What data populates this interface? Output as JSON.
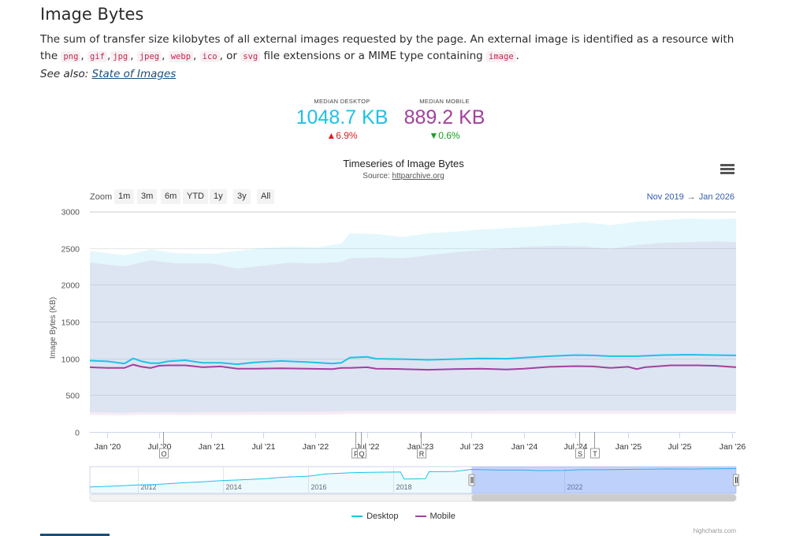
{
  "page": {
    "title": "Image Bytes",
    "desc_parts": [
      "The sum of transfer size kilobytes of all external images requested by the page. An external image is identified as a resource with the ",
      ", ",
      ",",
      ", ",
      ", ",
      ", ",
      ", or ",
      " file extensions or a MIME type containing ",
      "."
    ],
    "desc_codes": [
      "png",
      "gif",
      "jpg",
      "jpeg",
      "webp",
      "ico",
      "svg",
      "image"
    ],
    "see_also_label": "See also:",
    "see_also_link": "State of Images"
  },
  "metrics": {
    "desktop": {
      "label": "MEDIAN DESKTOP",
      "value": "1048.7 KB",
      "change": "▲6.9%",
      "color": "#1ec1e8",
      "change_color": "#e31b23"
    },
    "mobile": {
      "label": "MEDIAN MOBILE",
      "value": "889.2 KB",
      "change": "▼0.6%",
      "color": "#a3409e",
      "change_color": "#16a01c"
    }
  },
  "toolbar": {
    "zoom_label": "Zoom",
    "zoom_buttons": [
      "1m",
      "3m",
      "6m",
      "YTD",
      "1y",
      "3y",
      "All"
    ],
    "range_from": "Nov 2019",
    "range_arrow": "→",
    "range_to": "Jan 2026",
    "menu_icon": "hamburger-menu-icon"
  },
  "chart_data": {
    "type": "line",
    "title": "Timeseries of Image Bytes",
    "subtitle_prefix": "Source: ",
    "subtitle_link": "httparchive.org",
    "ylabel": "Image Bytes (KB)",
    "ylim": [
      0,
      3000
    ],
    "y_ticks": [
      0,
      500,
      1000,
      1500,
      2000,
      2500,
      3000
    ],
    "x_range": [
      "2019-11-01",
      "2026-01-15"
    ],
    "x_ticks": [
      {
        "date": "2020-01-01",
        "label": "Jan '20"
      },
      {
        "date": "2020-07-01",
        "label": "Jul '20"
      },
      {
        "date": "2021-01-01",
        "label": "Jan '21"
      },
      {
        "date": "2021-07-01",
        "label": "Jul '21"
      },
      {
        "date": "2022-01-01",
        "label": "Jan '22"
      },
      {
        "date": "2022-07-01",
        "label": "Jul '22"
      },
      {
        "date": "2023-01-01",
        "label": "Jan '23"
      },
      {
        "date": "2023-07-01",
        "label": "Jul '23"
      },
      {
        "date": "2024-01-01",
        "label": "Jan '24"
      },
      {
        "date": "2024-07-01",
        "label": "Jul '24"
      },
      {
        "date": "2025-01-01",
        "label": "Jan '25"
      },
      {
        "date": "2025-07-01",
        "label": "Jul '25"
      },
      {
        "date": "2026-01-01",
        "label": "Jan '26"
      }
    ],
    "flags": [
      {
        "letter": "O",
        "date": "2020-07-15"
      },
      {
        "letter": "P",
        "date": "2022-05-20"
      },
      {
        "letter": "Q",
        "date": "2022-06-10"
      },
      {
        "letter": "R",
        "date": "2023-01-05"
      },
      {
        "letter": "S",
        "date": "2024-07-15"
      },
      {
        "letter": "T",
        "date": "2024-09-05"
      }
    ],
    "series": [
      {
        "name": "Desktop",
        "color": "#1ec1e8",
        "points": [
          [
            "2019-11-01",
            970
          ],
          [
            "2020-01-01",
            960
          ],
          [
            "2020-03-01",
            930
          ],
          [
            "2020-04-01",
            1000
          ],
          [
            "2020-05-01",
            960
          ],
          [
            "2020-06-01",
            935
          ],
          [
            "2020-07-01",
            935
          ],
          [
            "2020-08-01",
            960
          ],
          [
            "2020-10-01",
            975
          ],
          [
            "2020-12-01",
            940
          ],
          [
            "2021-02-01",
            940
          ],
          [
            "2021-04-01",
            920
          ],
          [
            "2021-06-01",
            945
          ],
          [
            "2021-09-01",
            965
          ],
          [
            "2021-12-01",
            950
          ],
          [
            "2022-03-01",
            930
          ],
          [
            "2022-04-01",
            940
          ],
          [
            "2022-05-01",
            1010
          ],
          [
            "2022-07-01",
            1020
          ],
          [
            "2022-08-01",
            995
          ],
          [
            "2022-11-01",
            990
          ],
          [
            "2023-02-01",
            980
          ],
          [
            "2023-05-01",
            990
          ],
          [
            "2023-08-01",
            1000
          ],
          [
            "2023-11-01",
            995
          ],
          [
            "2024-01-01",
            1010
          ],
          [
            "2024-04-01",
            1030
          ],
          [
            "2024-07-01",
            1045
          ],
          [
            "2024-09-01",
            1040
          ],
          [
            "2024-11-01",
            1030
          ],
          [
            "2025-02-01",
            1030
          ],
          [
            "2025-05-01",
            1045
          ],
          [
            "2025-08-01",
            1050
          ],
          [
            "2025-11-01",
            1045
          ],
          [
            "2026-01-15",
            1040
          ]
        ],
        "range": [
          [
            "2019-11-01",
            270,
            2460
          ],
          [
            "2020-03-01",
            260,
            2400
          ],
          [
            "2020-06-01",
            270,
            2480
          ],
          [
            "2020-09-01",
            265,
            2430
          ],
          [
            "2021-01-01",
            270,
            2420
          ],
          [
            "2021-04-01",
            270,
            2460
          ],
          [
            "2021-07-01",
            275,
            2500
          ],
          [
            "2021-10-01",
            275,
            2520
          ],
          [
            "2022-01-01",
            275,
            2510
          ],
          [
            "2022-04-01",
            280,
            2560
          ],
          [
            "2022-05-01",
            285,
            2700
          ],
          [
            "2022-08-01",
            285,
            2690
          ],
          [
            "2022-11-01",
            285,
            2650
          ],
          [
            "2023-02-01",
            285,
            2700
          ],
          [
            "2023-05-01",
            285,
            2720
          ],
          [
            "2023-08-01",
            285,
            2750
          ],
          [
            "2023-11-01",
            290,
            2770
          ],
          [
            "2024-02-01",
            290,
            2790
          ],
          [
            "2024-05-01",
            290,
            2820
          ],
          [
            "2024-08-01",
            290,
            2850
          ],
          [
            "2024-11-01",
            290,
            2810
          ],
          [
            "2025-02-01",
            290,
            2860
          ],
          [
            "2025-05-01",
            290,
            2880
          ],
          [
            "2025-08-01",
            290,
            2900
          ],
          [
            "2025-11-01",
            290,
            2890
          ],
          [
            "2026-01-15",
            290,
            2900
          ]
        ]
      },
      {
        "name": "Mobile",
        "color": "#a3409e",
        "points": [
          [
            "2019-11-01",
            880
          ],
          [
            "2020-01-01",
            870
          ],
          [
            "2020-03-01",
            870
          ],
          [
            "2020-04-01",
            915
          ],
          [
            "2020-05-01",
            885
          ],
          [
            "2020-06-01",
            870
          ],
          [
            "2020-07-01",
            900
          ],
          [
            "2020-08-01",
            905
          ],
          [
            "2020-10-01",
            905
          ],
          [
            "2020-12-01",
            880
          ],
          [
            "2021-02-01",
            890
          ],
          [
            "2021-04-01",
            860
          ],
          [
            "2021-06-01",
            860
          ],
          [
            "2021-09-01",
            865
          ],
          [
            "2021-12-01",
            860
          ],
          [
            "2022-03-01",
            855
          ],
          [
            "2022-04-01",
            870
          ],
          [
            "2022-05-01",
            870
          ],
          [
            "2022-07-01",
            880
          ],
          [
            "2022-08-01",
            860
          ],
          [
            "2022-11-01",
            855
          ],
          [
            "2023-02-01",
            845
          ],
          [
            "2023-05-01",
            855
          ],
          [
            "2023-08-01",
            860
          ],
          [
            "2023-11-01",
            850
          ],
          [
            "2024-01-01",
            860
          ],
          [
            "2024-04-01",
            885
          ],
          [
            "2024-07-01",
            895
          ],
          [
            "2024-09-01",
            890
          ],
          [
            "2024-11-01",
            870
          ],
          [
            "2025-01-01",
            885
          ],
          [
            "2025-02-01",
            855
          ],
          [
            "2025-03-01",
            880
          ],
          [
            "2025-06-01",
            905
          ],
          [
            "2025-09-01",
            905
          ],
          [
            "2025-11-01",
            900
          ],
          [
            "2026-01-15",
            880
          ]
        ],
        "range": [
          [
            "2019-11-01",
            230,
            2300
          ],
          [
            "2020-03-01",
            225,
            2250
          ],
          [
            "2020-06-01",
            235,
            2330
          ],
          [
            "2020-09-01",
            230,
            2290
          ],
          [
            "2021-01-01",
            230,
            2290
          ],
          [
            "2021-04-01",
            230,
            2220
          ],
          [
            "2021-07-01",
            235,
            2260
          ],
          [
            "2021-10-01",
            235,
            2300
          ],
          [
            "2022-01-01",
            235,
            2290
          ],
          [
            "2022-04-01",
            240,
            2310
          ],
          [
            "2022-05-01",
            245,
            2360
          ],
          [
            "2022-08-01",
            245,
            2370
          ],
          [
            "2022-11-01",
            245,
            2360
          ],
          [
            "2023-02-01",
            245,
            2400
          ],
          [
            "2023-05-01",
            245,
            2440
          ],
          [
            "2023-08-01",
            245,
            2470
          ],
          [
            "2023-11-01",
            245,
            2500
          ],
          [
            "2024-02-01",
            245,
            2520
          ],
          [
            "2024-05-01",
            245,
            2530
          ],
          [
            "2024-08-01",
            245,
            2520
          ],
          [
            "2024-11-01",
            245,
            2490
          ],
          [
            "2025-02-01",
            245,
            2540
          ],
          [
            "2025-05-01",
            245,
            2570
          ],
          [
            "2025-08-01",
            245,
            2580
          ],
          [
            "2025-11-01",
            245,
            2590
          ],
          [
            "2026-01-15",
            245,
            2580
          ]
        ]
      }
    ],
    "navigator": {
      "x_range": [
        "2010-11-15",
        "2026-01-15"
      ],
      "x_ticks": [
        {
          "date": "2012-01-01",
          "label": "2012"
        },
        {
          "date": "2014-01-01",
          "label": "2014"
        },
        {
          "date": "2016-01-01",
          "label": "2016"
        },
        {
          "date": "2018-01-01",
          "label": "2018"
        },
        {
          "date": "2022-01-01",
          "label": "2022"
        }
      ],
      "selected_from": "2019-11-01",
      "selected_to": "2026-01-15",
      "points": [
        [
          "2010-11-15",
          430
        ],
        [
          "2011-06-01",
          480
        ],
        [
          "2012-01-01",
          560
        ],
        [
          "2012-06-01",
          600
        ],
        [
          "2013-01-01",
          700
        ],
        [
          "2013-06-01",
          760
        ],
        [
          "2014-01-01",
          860
        ],
        [
          "2014-06-01",
          900
        ],
        [
          "2015-01-01",
          980
        ],
        [
          "2015-06-01",
          1080
        ],
        [
          "2016-01-01",
          1150
        ],
        [
          "2016-06-01",
          1300
        ],
        [
          "2017-01-01",
          1380
        ],
        [
          "2017-06-01",
          1400
        ],
        [
          "2018-01-01",
          1420
        ],
        [
          "2018-03-01",
          1430
        ],
        [
          "2018-04-01",
          960
        ],
        [
          "2018-10-01",
          980
        ],
        [
          "2018-11-01",
          1440
        ],
        [
          "2019-06-01",
          1460
        ],
        [
          "2019-11-01",
          1600
        ],
        [
          "2020-06-01",
          1560
        ],
        [
          "2021-01-01",
          1560
        ],
        [
          "2021-06-01",
          1520
        ],
        [
          "2022-01-01",
          1530
        ],
        [
          "2022-06-01",
          1580
        ],
        [
          "2023-01-01",
          1580
        ],
        [
          "2023-06-01",
          1600
        ],
        [
          "2024-01-01",
          1610
        ],
        [
          "2024-06-01",
          1630
        ],
        [
          "2025-01-01",
          1620
        ],
        [
          "2025-06-01",
          1640
        ],
        [
          "2026-01-15",
          1650
        ]
      ]
    },
    "legend": [
      {
        "name": "Desktop",
        "color": "#1ec1e8"
      },
      {
        "name": "Mobile",
        "color": "#a3409e"
      }
    ],
    "legend_position": "bottom-center",
    "grid": true,
    "credits": "highcharts.com"
  }
}
